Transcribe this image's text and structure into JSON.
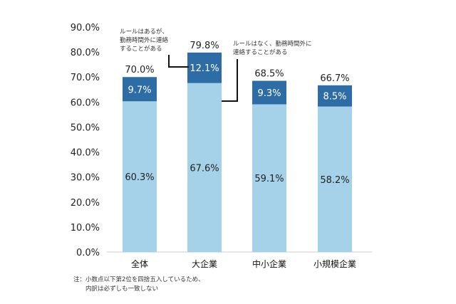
{
  "chart_data": {
    "type": "bar",
    "stacked": true,
    "categories": [
      "全体",
      "大企業",
      "中小企業",
      "小規模企業"
    ],
    "series": [
      {
        "name": "ルールはなく、勤務時間外に連絡することがある",
        "values": [
          60.3,
          67.6,
          59.1,
          58.2
        ],
        "color": "#a5d2e8"
      },
      {
        "name": "ルールはあるが、勤務時間外に連絡することがある",
        "values": [
          9.7,
          12.1,
          9.3,
          8.5
        ],
        "color": "#2e6ca6"
      }
    ],
    "totals": [
      70.0,
      79.8,
      68.5,
      66.7
    ],
    "value_labels_bottom": [
      "60.3%",
      "67.6%",
      "59.1%",
      "58.2%"
    ],
    "value_labels_top": [
      "9.7%",
      "12.1%",
      "9.3%",
      "8.5%"
    ],
    "total_labels": [
      "70.0%",
      "79.8%",
      "68.5%",
      "66.7%"
    ],
    "ylim": [
      0,
      90
    ],
    "yticks": [
      "0.0%",
      "10.0%",
      "20.0%",
      "30.0%",
      "40.0%",
      "50.0%",
      "60.0%",
      "70.0%",
      "80.0%",
      "90.0%"
    ],
    "grid": false,
    "annotations": {
      "top_series": [
        "ルールはあるが、",
        "勤務時間外に連絡",
        "することがある"
      ],
      "bottom_series": [
        "ルールはなく、勤務時間外に",
        "連絡することがある"
      ]
    },
    "note": [
      "注：小数点以下第2位を四捨五入しているため、",
      "内訳は必ずしも一致しない"
    ]
  }
}
